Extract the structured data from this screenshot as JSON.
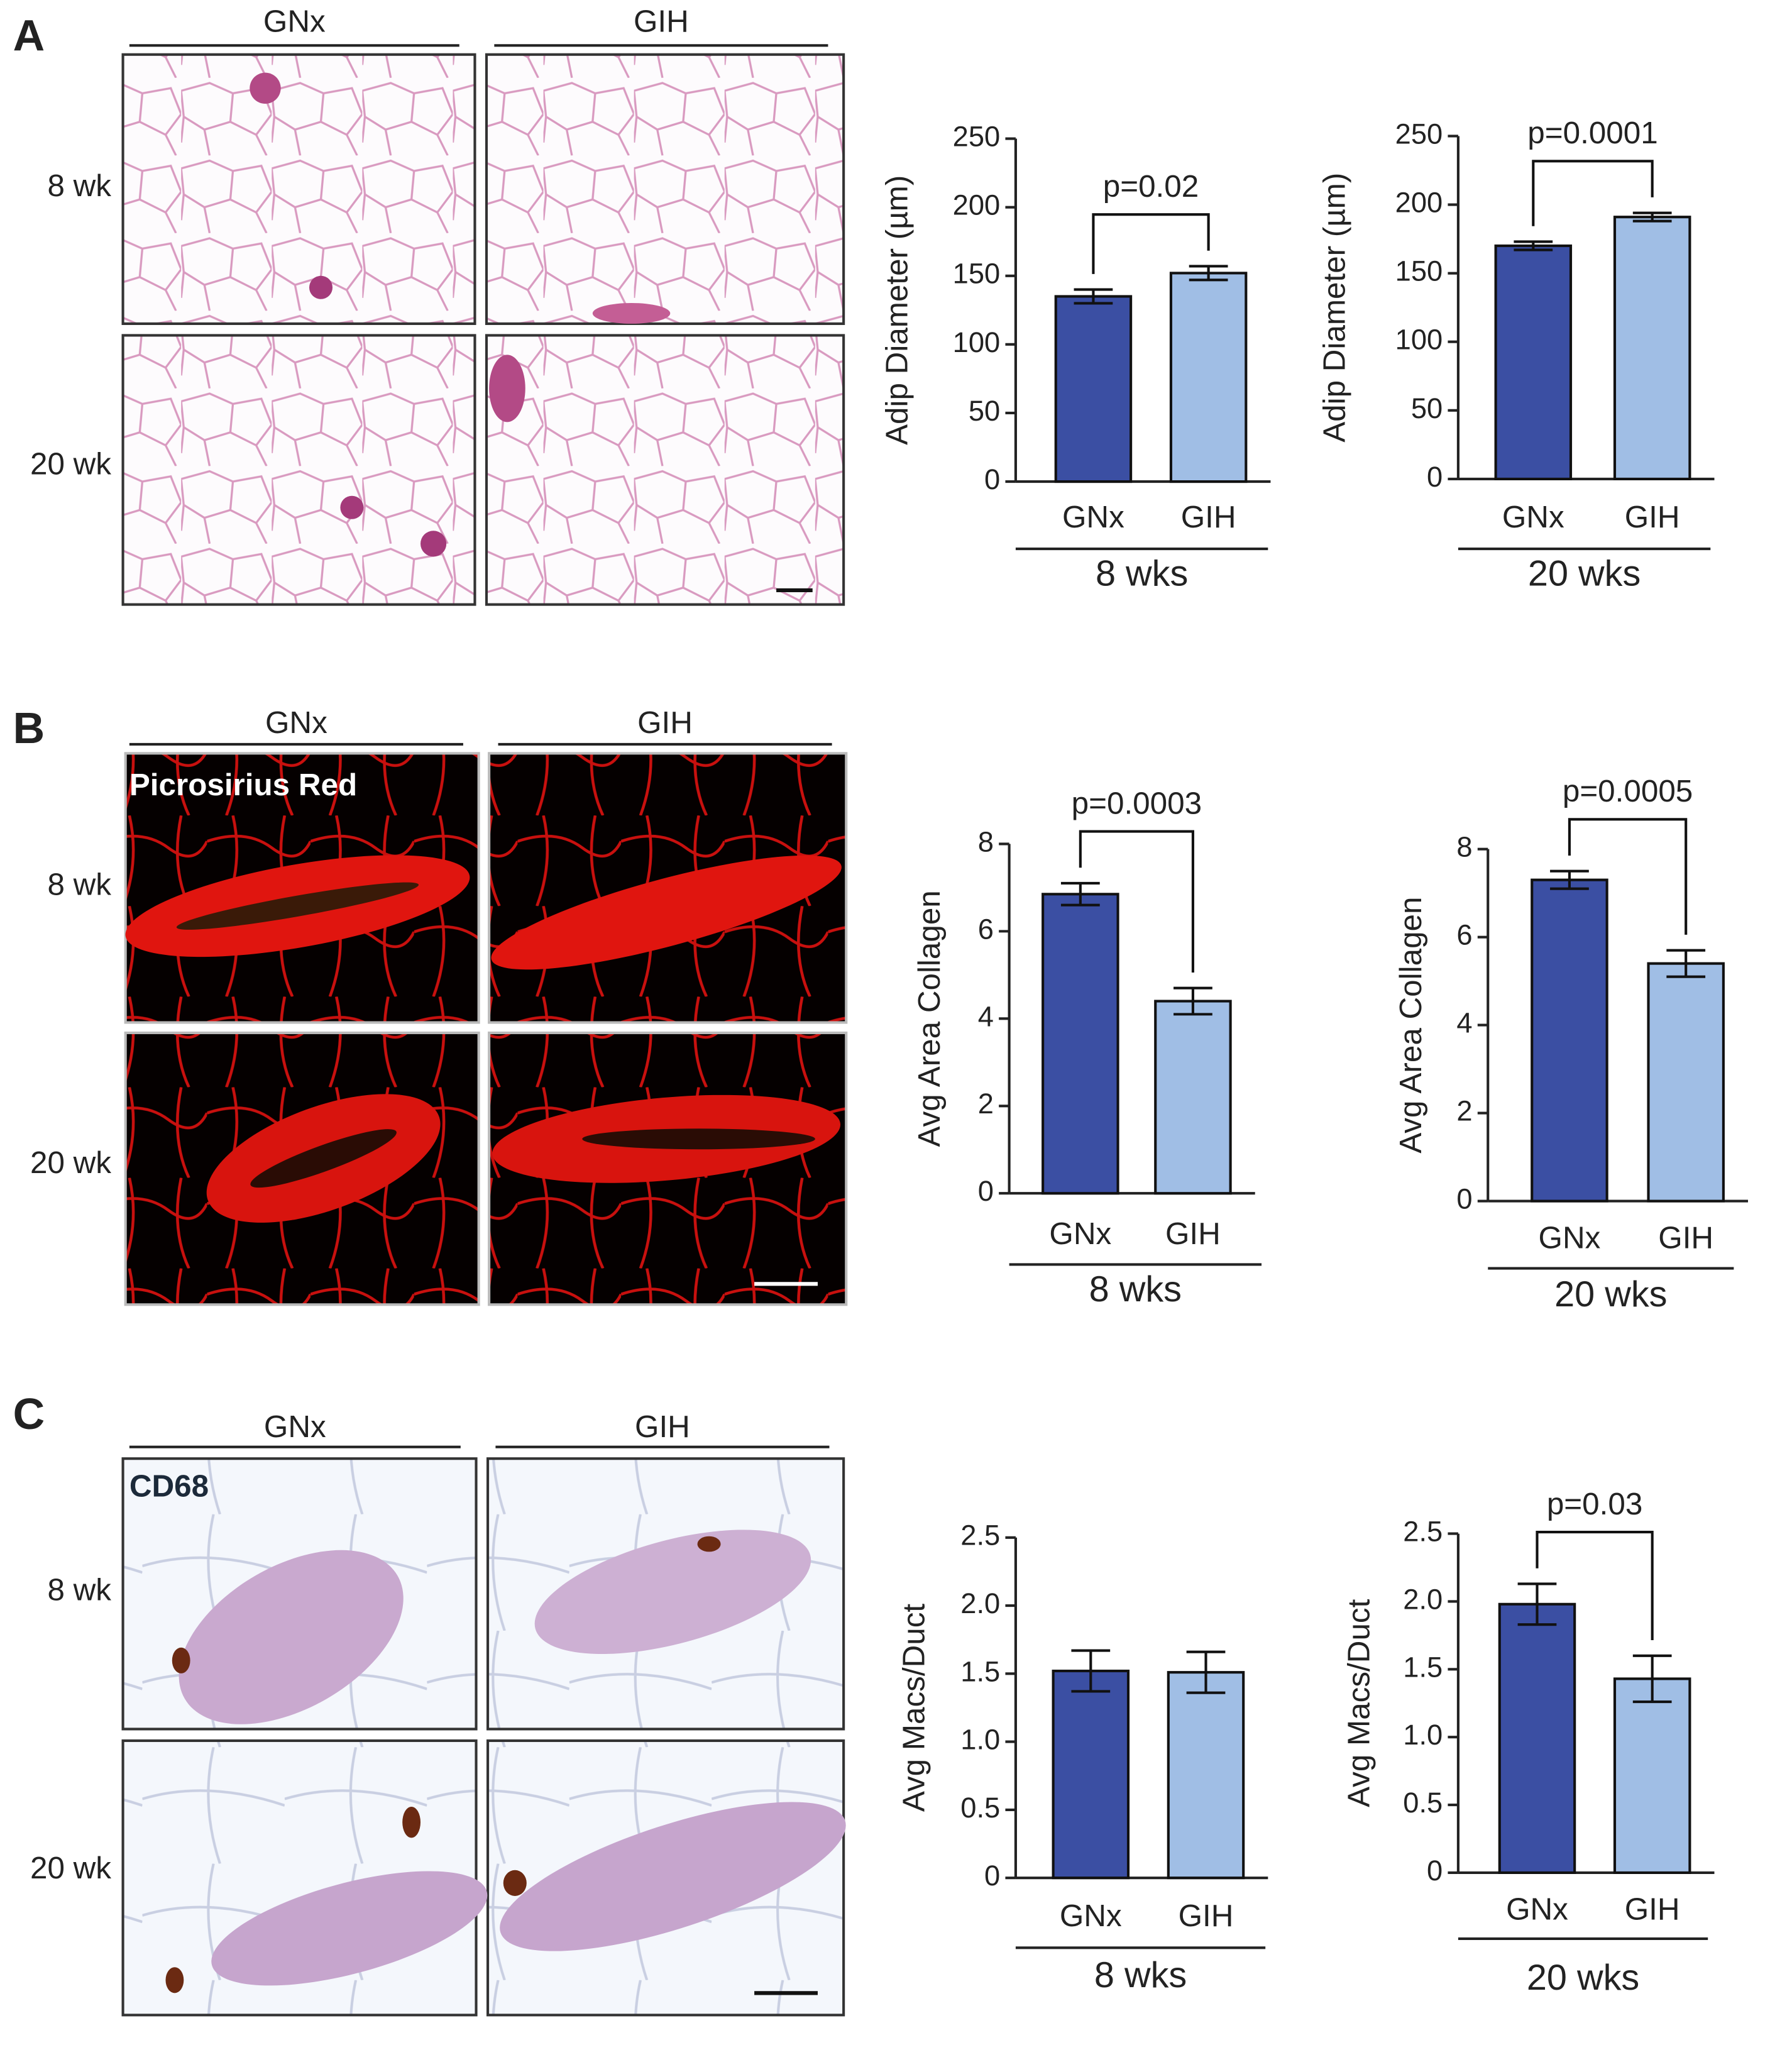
{
  "panels": [
    {
      "letter": "A",
      "columns": [
        "GNx",
        "GIH"
      ],
      "rows": [
        "8 wk",
        "20 wk"
      ]
    },
    {
      "letter": "B",
      "columns": [
        "GNx",
        "GIH"
      ],
      "rows": [
        "8 wk",
        "20 wk"
      ],
      "stain": "Picrosirius Red"
    },
    {
      "letter": "C",
      "columns": [
        "GNx",
        "GIH"
      ],
      "rows": [
        "8 wk",
        "20 wk"
      ],
      "stain": "CD68"
    }
  ],
  "chart_data": [
    {
      "type": "bar",
      "ylabel": "Adip Diameter (µm)",
      "group": "8 wks",
      "categories": [
        "GNx",
        "GIH"
      ],
      "values": [
        135,
        152
      ],
      "errors": [
        5,
        5
      ],
      "colors": [
        "#3b4fa3",
        "#a0bee5"
      ],
      "ylim": [
        0,
        250
      ],
      "yticks": [
        0,
        50,
        100,
        150,
        200,
        250
      ],
      "annotation": "p=0.02"
    },
    {
      "type": "bar",
      "ylabel": "Adip Diameter (µm)",
      "group": "20 wks",
      "categories": [
        "GNx",
        "GIH"
      ],
      "values": [
        170,
        191
      ],
      "errors": [
        3,
        3
      ],
      "colors": [
        "#3b4fa3",
        "#a0bee5"
      ],
      "ylim": [
        0,
        250
      ],
      "yticks": [
        0,
        50,
        100,
        150,
        200,
        250
      ],
      "annotation": "p=0.0001"
    },
    {
      "type": "bar",
      "ylabel": "Avg Area Collagen",
      "group": "8 wks",
      "categories": [
        "GNx",
        "GIH"
      ],
      "values": [
        6.85,
        4.4
      ],
      "errors": [
        0.25,
        0.3
      ],
      "colors": [
        "#3b4fa3",
        "#a0bee5"
      ],
      "ylim": [
        0,
        8
      ],
      "yticks": [
        0,
        2,
        4,
        6,
        8
      ],
      "annotation": "p=0.0003"
    },
    {
      "type": "bar",
      "ylabel": "Avg Area Collagen",
      "group": "20 wks",
      "categories": [
        "GNx",
        "GIH"
      ],
      "values": [
        7.3,
        5.4
      ],
      "errors": [
        0.2,
        0.3
      ],
      "colors": [
        "#3b4fa3",
        "#a0bee5"
      ],
      "ylim": [
        0,
        8
      ],
      "yticks": [
        0,
        2,
        4,
        6,
        8
      ],
      "annotation": "p=0.0005"
    },
    {
      "type": "bar",
      "ylabel": "Avg Macs/Duct",
      "group": "8 wks",
      "categories": [
        "GNx",
        "GIH"
      ],
      "values": [
        1.52,
        1.51
      ],
      "errors": [
        0.15,
        0.15
      ],
      "colors": [
        "#3b4fa3",
        "#a0bee5"
      ],
      "ylim": [
        0,
        2.5
      ],
      "yticks": [
        0,
        0.5,
        {
          "value": 1,
          "label": "1.0"
        },
        1.5,
        {
          "value": 2,
          "label": "2.0"
        },
        2.5
      ]
    },
    {
      "type": "bar",
      "ylabel": "Avg Macs/Duct",
      "group": "20 wks",
      "categories": [
        "GNx",
        "GIH"
      ],
      "values": [
        1.98,
        1.43
      ],
      "errors": [
        0.15,
        0.17
      ],
      "colors": [
        "#3b4fa3",
        "#a0bee5"
      ],
      "ylim": [
        0,
        2.5
      ],
      "yticks": [
        0,
        0.5,
        {
          "value": 1,
          "label": "1.0"
        },
        1.5,
        {
          "value": 2,
          "label": "2.0"
        },
        2.5
      ],
      "annotation": "p=0.03"
    }
  ]
}
